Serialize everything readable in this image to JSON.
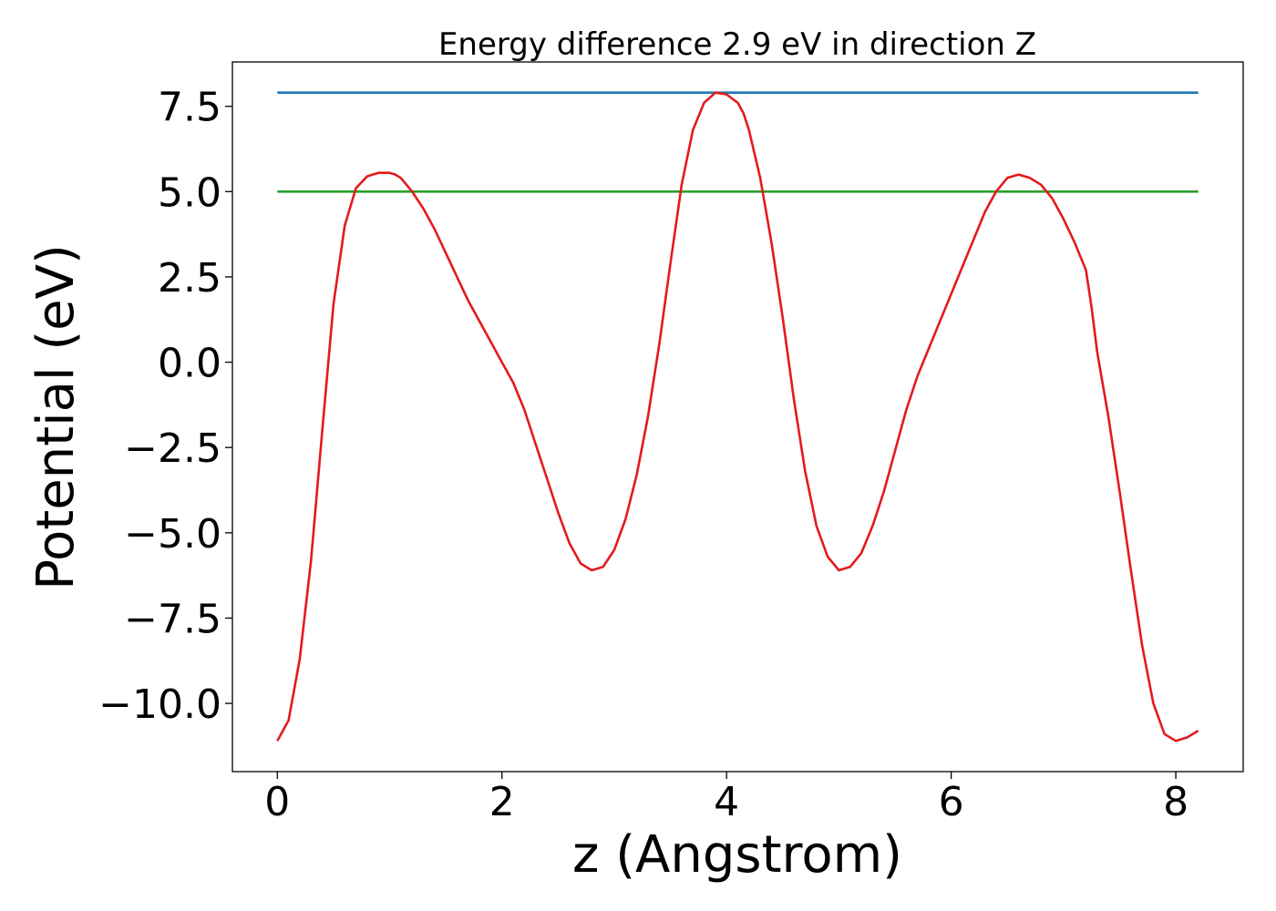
{
  "chart_data": {
    "type": "line",
    "title": "Energy difference 2.9 eV in direction Z",
    "xlabel": "z (Angstrom)",
    "ylabel": "Potential (eV)",
    "xlim": [
      -0.4,
      8.6
    ],
    "ylim": [
      -12.0,
      8.8
    ],
    "xticks": [
      0,
      2,
      4,
      6,
      8
    ],
    "xtick_labels": [
      "0",
      "2",
      "4",
      "6",
      "8"
    ],
    "yticks": [
      -10.0,
      -7.5,
      -5.0,
      -2.5,
      0.0,
      2.5,
      5.0,
      7.5
    ],
    "ytick_labels": [
      "−10.0",
      "−7.5",
      "−5.0",
      "−2.5",
      "0.0",
      "2.5",
      "5.0",
      "7.5"
    ],
    "grid": false,
    "legend": "none",
    "series": [
      {
        "color": "#1f77b4",
        "x": [
          0.0,
          8.2
        ],
        "y": [
          7.9,
          7.9
        ]
      },
      {
        "color": "#2ca02c",
        "x": [
          0.0,
          8.2
        ],
        "y": [
          5.0,
          5.0
        ]
      },
      {
        "color": "#e41a1c",
        "x": [
          0.0,
          0.1,
          0.2,
          0.3,
          0.4,
          0.5,
          0.6,
          0.7,
          0.8,
          0.9,
          1.0,
          1.05,
          1.1,
          1.2,
          1.3,
          1.4,
          1.5,
          1.6,
          1.7,
          1.8,
          1.9,
          2.0,
          2.1,
          2.2,
          2.3,
          2.4,
          2.5,
          2.6,
          2.7,
          2.8,
          2.9,
          3.0,
          3.1,
          3.2,
          3.3,
          3.4,
          3.5,
          3.6,
          3.7,
          3.8,
          3.9,
          4.0,
          4.1,
          4.15,
          4.2,
          4.3,
          4.4,
          4.5,
          4.6,
          4.7,
          4.8,
          4.9,
          5.0,
          5.1,
          5.2,
          5.3,
          5.4,
          5.5,
          5.6,
          5.7,
          5.8,
          5.9,
          6.0,
          6.1,
          6.2,
          6.3,
          6.4,
          6.5,
          6.6,
          6.7,
          6.8,
          6.9,
          7.0,
          7.1,
          7.2,
          7.25,
          7.3,
          7.4,
          7.5,
          7.6,
          7.7,
          7.8,
          7.9,
          8.0,
          8.1,
          8.2
        ],
        "y": [
          -11.1,
          -10.5,
          -8.7,
          -5.8,
          -2.0,
          1.7,
          4.0,
          5.1,
          5.45,
          5.55,
          5.55,
          5.5,
          5.4,
          5.0,
          4.5,
          3.9,
          3.2,
          2.5,
          1.8,
          1.2,
          0.6,
          0.0,
          -0.6,
          -1.4,
          -2.4,
          -3.4,
          -4.4,
          -5.3,
          -5.9,
          -6.1,
          -6.0,
          -5.5,
          -4.6,
          -3.3,
          -1.6,
          0.5,
          2.9,
          5.2,
          6.8,
          7.6,
          7.9,
          7.85,
          7.6,
          7.3,
          6.8,
          5.4,
          3.5,
          1.3,
          -1.1,
          -3.2,
          -4.8,
          -5.7,
          -6.1,
          -6.0,
          -5.6,
          -4.8,
          -3.8,
          -2.6,
          -1.4,
          -0.4,
          0.4,
          1.2,
          2.0,
          2.8,
          3.6,
          4.4,
          5.0,
          5.4,
          5.5,
          5.4,
          5.2,
          4.8,
          4.2,
          3.5,
          2.7,
          1.6,
          0.3,
          -1.6,
          -3.8,
          -6.1,
          -8.3,
          -10.0,
          -10.9,
          -11.1,
          -11.0,
          -10.8
        ],
        "note_free": true
      }
    ]
  }
}
